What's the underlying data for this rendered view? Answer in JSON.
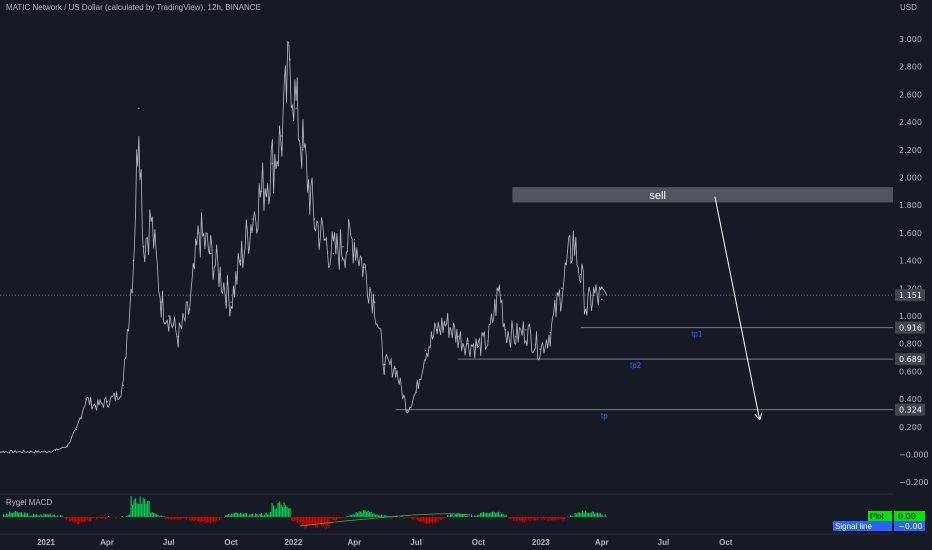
{
  "header": {
    "title": "MATIC Network / US Dollar (calculated by TradingView), 12h, BINANCE",
    "currency": "USD"
  },
  "colors": {
    "background": "#161a25",
    "candles": "#c8cbd4",
    "grid": "#1e222d",
    "line": "#787b86",
    "zone": "#5d606b",
    "annotation_blue": "#2962ff",
    "macd_up": "#00c853",
    "macd_down": "#d50000",
    "plot_badge": "#00e600",
    "signal_badge": "#2962ff"
  },
  "chart_data": {
    "type": "line",
    "title": "MATIC Network / US Dollar (calculated by TradingView), 12h, BINANCE",
    "ylabel": "USD",
    "ylim": [
      -0.3,
      3.1
    ],
    "y_ticks": [
      "3.000",
      "2.800",
      "2.600",
      "2.400",
      "2.200",
      "2.000",
      "1.800",
      "1.600",
      "1.400",
      "1.200",
      "1.000",
      "0.800",
      "0.600",
      "0.400",
      "0.200",
      "−0.000",
      "−0.200"
    ],
    "y_tick_values": [
      3.0,
      2.8,
      2.6,
      2.4,
      2.2,
      2.0,
      1.8,
      1.6,
      1.4,
      1.2,
      1.0,
      0.8,
      0.6,
      0.4,
      0.2,
      0.0,
      -0.2
    ],
    "x_ticks": [
      "2021",
      "Apr",
      "Jul",
      "Oct",
      "2022",
      "Apr",
      "Jul",
      "Oct",
      "2023",
      "Apr",
      "Jul",
      "Oct"
    ],
    "x_tick_values": [
      "2021-01-01",
      "2021-04-01",
      "2021-07-01",
      "2021-10-01",
      "2022-01-01",
      "2022-04-01",
      "2022-07-01",
      "2022-10-01",
      "2023-01-01",
      "2023-04-01",
      "2023-07-01",
      "2023-10-01"
    ],
    "series": [
      {
        "values": [
          {
            "x": "2020-10-01",
            "y": 0.02
          },
          {
            "x": "2020-11-15",
            "y": 0.02
          },
          {
            "x": "2020-12-31",
            "y": 0.02
          },
          {
            "x": "2021-01-15",
            "y": 0.03
          },
          {
            "x": "2021-02-01",
            "y": 0.06
          },
          {
            "x": "2021-02-15",
            "y": 0.18
          },
          {
            "x": "2021-03-01",
            "y": 0.4
          },
          {
            "x": "2021-03-15",
            "y": 0.35
          },
          {
            "x": "2021-04-01",
            "y": 0.38
          },
          {
            "x": "2021-04-15",
            "y": 0.42
          },
          {
            "x": "2021-04-25",
            "y": 0.5
          },
          {
            "x": "2021-05-01",
            "y": 0.9
          },
          {
            "x": "2021-05-10",
            "y": 1.4
          },
          {
            "x": "2021-05-18",
            "y": 2.5
          },
          {
            "x": "2021-05-25",
            "y": 1.5
          },
          {
            "x": "2021-06-05",
            "y": 1.7
          },
          {
            "x": "2021-06-20",
            "y": 1.1
          },
          {
            "x": "2021-07-01",
            "y": 1.0
          },
          {
            "x": "2021-07-15",
            "y": 0.85
          },
          {
            "x": "2021-08-01",
            "y": 1.05
          },
          {
            "x": "2021-08-15",
            "y": 1.6
          },
          {
            "x": "2021-09-01",
            "y": 1.45
          },
          {
            "x": "2021-09-15",
            "y": 1.3
          },
          {
            "x": "2021-10-01",
            "y": 1.1
          },
          {
            "x": "2021-10-15",
            "y": 1.4
          },
          {
            "x": "2021-11-01",
            "y": 1.7
          },
          {
            "x": "2021-11-15",
            "y": 1.9
          },
          {
            "x": "2021-12-01",
            "y": 2.1
          },
          {
            "x": "2021-12-15",
            "y": 2.3
          },
          {
            "x": "2021-12-27",
            "y": 2.85
          },
          {
            "x": "2022-01-05",
            "y": 2.5
          },
          {
            "x": "2022-01-15",
            "y": 2.2
          },
          {
            "x": "2022-02-01",
            "y": 1.7
          },
          {
            "x": "2022-02-15",
            "y": 1.55
          },
          {
            "x": "2022-03-01",
            "y": 1.45
          },
          {
            "x": "2022-03-15",
            "y": 1.5
          },
          {
            "x": "2022-04-01",
            "y": 1.55
          },
          {
            "x": "2022-04-15",
            "y": 1.35
          },
          {
            "x": "2022-05-01",
            "y": 1.1
          },
          {
            "x": "2022-05-15",
            "y": 0.65
          },
          {
            "x": "2022-06-01",
            "y": 0.62
          },
          {
            "x": "2022-06-18",
            "y": 0.32
          },
          {
            "x": "2022-07-01",
            "y": 0.45
          },
          {
            "x": "2022-07-15",
            "y": 0.75
          },
          {
            "x": "2022-08-01",
            "y": 0.9
          },
          {
            "x": "2022-08-15",
            "y": 0.95
          },
          {
            "x": "2022-09-01",
            "y": 0.85
          },
          {
            "x": "2022-09-15",
            "y": 0.8
          },
          {
            "x": "2022-10-01",
            "y": 0.78
          },
          {
            "x": "2022-10-15",
            "y": 0.82
          },
          {
            "x": "2022-11-01",
            "y": 1.2
          },
          {
            "x": "2022-11-10",
            "y": 0.9
          },
          {
            "x": "2022-11-25",
            "y": 0.85
          },
          {
            "x": "2022-12-10",
            "y": 0.9
          },
          {
            "x": "2022-12-31",
            "y": 0.76
          },
          {
            "x": "2023-01-15",
            "y": 0.88
          },
          {
            "x": "2023-02-01",
            "y": 1.2
          },
          {
            "x": "2023-02-18",
            "y": 1.55
          },
          {
            "x": "2023-03-01",
            "y": 1.3
          },
          {
            "x": "2023-03-10",
            "y": 1.05
          },
          {
            "x": "2023-03-20",
            "y": 1.15
          },
          {
            "x": "2023-04-01",
            "y": 1.12
          },
          {
            "x": "2023-04-08",
            "y": 1.151
          }
        ]
      }
    ],
    "price_lines": [
      {
        "value": 1.151,
        "label": "1.151",
        "dashed": true
      },
      {
        "value": 0.916,
        "label": "0.916",
        "from": "2023-03-01",
        "note": "tp1"
      },
      {
        "value": 0.689,
        "label": "0.689",
        "from": "2022-09-01",
        "note": "tp2"
      },
      {
        "value": 0.324,
        "label": "0.324",
        "from": "2022-06-01",
        "note": "tp"
      }
    ],
    "sell_zone": {
      "label": "sell",
      "from": "2022-11-20",
      "to": "2024-01-10",
      "y_low": 1.82,
      "y_high": 1.93
    },
    "arrow": {
      "from": {
        "x": "2023-09-15",
        "y": 1.86
      },
      "to": {
        "x": "2023-11-20",
        "y": 0.25
      }
    },
    "grid": false,
    "indicator": {
      "name": "Rygel MACD",
      "legend": [
        {
          "label": "Plot",
          "value": "0.00"
        },
        {
          "label": "Signal line",
          "value": "−0.00"
        }
      ]
    }
  }
}
